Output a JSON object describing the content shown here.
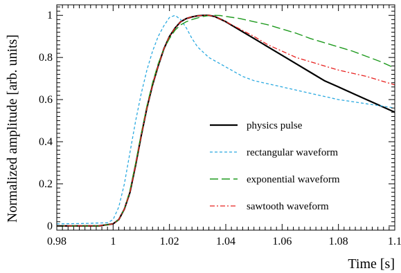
{
  "chart_data": {
    "type": "line",
    "title": "",
    "xlabel": "Time [s]",
    "ylabel": "Normalized amplitude [arb. units]",
    "xlim": [
      0.98,
      1.1
    ],
    "ylim": [
      -0.02,
      1.05
    ],
    "x_ticks": [
      0.98,
      1,
      1.02,
      1.04,
      1.06,
      1.08,
      1.1
    ],
    "x_tick_labels": [
      "0.98",
      "1",
      "1.02",
      "1.04",
      "1.06",
      "1.08",
      "1.1"
    ],
    "y_ticks": [
      0,
      0.2,
      0.4,
      0.6,
      0.8,
      1
    ],
    "y_tick_labels": [
      "0",
      "0.2",
      "0.4",
      "0.6",
      "0.8",
      "1"
    ],
    "grid": false,
    "legend_position": "center-right",
    "series": [
      {
        "name": "physics pulse",
        "color": "#000000",
        "dash": "solid",
        "x": [
          0.98,
          0.995,
          1.0,
          1.002,
          1.004,
          1.006,
          1.008,
          1.01,
          1.012,
          1.014,
          1.016,
          1.018,
          1.02,
          1.022,
          1.024,
          1.026,
          1.028,
          1.03,
          1.032,
          1.034,
          1.036,
          1.04,
          1.045,
          1.05,
          1.055,
          1.06,
          1.065,
          1.07,
          1.075,
          1.08,
          1.085,
          1.09,
          1.095,
          1.1
        ],
        "y": [
          0.0,
          0.0,
          0.01,
          0.03,
          0.08,
          0.16,
          0.29,
          0.43,
          0.56,
          0.67,
          0.76,
          0.84,
          0.9,
          0.94,
          0.97,
          0.985,
          0.993,
          0.998,
          1.0,
          1.0,
          0.995,
          0.97,
          0.93,
          0.89,
          0.85,
          0.81,
          0.77,
          0.73,
          0.69,
          0.66,
          0.63,
          0.6,
          0.57,
          0.54
        ]
      },
      {
        "name": "rectangular waveform",
        "color": "#29a9e0",
        "dash": "short-dash",
        "x": [
          0.98,
          0.99,
          0.998,
          1.0,
          1.002,
          1.004,
          1.006,
          1.008,
          1.01,
          1.012,
          1.014,
          1.016,
          1.018,
          1.02,
          1.022,
          1.024,
          1.026,
          1.028,
          1.03,
          1.034,
          1.038,
          1.042,
          1.046,
          1.05,
          1.055,
          1.06,
          1.065,
          1.07,
          1.075,
          1.08,
          1.085,
          1.09,
          1.095,
          1.1
        ],
        "y": [
          0.01,
          0.012,
          0.015,
          0.03,
          0.09,
          0.2,
          0.35,
          0.5,
          0.63,
          0.74,
          0.83,
          0.9,
          0.95,
          0.99,
          1.0,
          0.98,
          0.94,
          0.89,
          0.85,
          0.8,
          0.77,
          0.74,
          0.71,
          0.69,
          0.675,
          0.66,
          0.645,
          0.63,
          0.615,
          0.6,
          0.59,
          0.58,
          0.57,
          0.56
        ]
      },
      {
        "name": "exponential waveform",
        "color": "#1e9a1e",
        "dash": "long-dash",
        "x": [
          0.98,
          0.995,
          1.0,
          1.002,
          1.004,
          1.006,
          1.008,
          1.01,
          1.012,
          1.014,
          1.016,
          1.018,
          1.02,
          1.022,
          1.024,
          1.026,
          1.028,
          1.03,
          1.032,
          1.034,
          1.036,
          1.038,
          1.04,
          1.045,
          1.05,
          1.055,
          1.06,
          1.065,
          1.07,
          1.075,
          1.08,
          1.085,
          1.09,
          1.095,
          1.1
        ],
        "y": [
          0.0,
          0.0,
          0.01,
          0.03,
          0.08,
          0.17,
          0.3,
          0.44,
          0.57,
          0.68,
          0.77,
          0.84,
          0.89,
          0.93,
          0.955,
          0.97,
          0.98,
          0.988,
          0.995,
          0.999,
          1.0,
          0.999,
          0.995,
          0.985,
          0.97,
          0.955,
          0.935,
          0.915,
          0.89,
          0.87,
          0.85,
          0.83,
          0.805,
          0.78,
          0.75
        ]
      },
      {
        "name": "sawtooth waveform",
        "color": "#e8201e",
        "dash": "dash-dot",
        "x": [
          0.98,
          0.995,
          1.0,
          1.002,
          1.004,
          1.006,
          1.008,
          1.01,
          1.012,
          1.014,
          1.016,
          1.018,
          1.02,
          1.022,
          1.024,
          1.026,
          1.028,
          1.03,
          1.032,
          1.034,
          1.036,
          1.04,
          1.045,
          1.05,
          1.055,
          1.06,
          1.065,
          1.07,
          1.075,
          1.08,
          1.085,
          1.09,
          1.095,
          1.1
        ],
        "y": [
          0.0,
          0.0,
          0.01,
          0.03,
          0.08,
          0.16,
          0.29,
          0.43,
          0.56,
          0.67,
          0.76,
          0.84,
          0.9,
          0.94,
          0.97,
          0.985,
          0.993,
          0.998,
          1.0,
          1.0,
          0.995,
          0.97,
          0.935,
          0.9,
          0.86,
          0.83,
          0.8,
          0.78,
          0.76,
          0.74,
          0.725,
          0.71,
          0.69,
          0.67
        ]
      }
    ]
  }
}
